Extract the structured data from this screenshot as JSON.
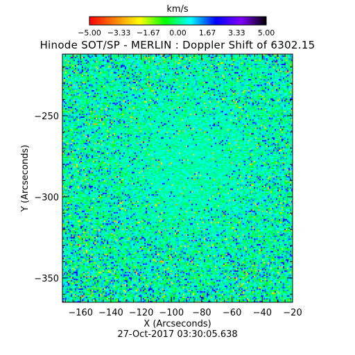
{
  "colorbar": {
    "unit": "km/s",
    "tick_labels": [
      "-5.00",
      "-3.33",
      "-1.67",
      "0.00",
      "1.67",
      "3.33",
      "5.00"
    ],
    "range": [
      -5,
      5
    ],
    "colormap": [
      "#ff0000",
      "#ff8000",
      "#ffff00",
      "#00ff00",
      "#00ffff",
      "#0000ff",
      "#8000ff",
      "#000000"
    ]
  },
  "chart_data": {
    "type": "heatmap",
    "title": "Hinode SOT/SP - MERLIN : Doppler Shift of 6302.15",
    "xlabel": "X (Arcseconds)",
    "ylabel": "Y (Arcseconds)",
    "xlim": [
      -172,
      -20
    ],
    "ylim": [
      -365,
      -212
    ],
    "x_ticks": [
      -160,
      -140,
      -120,
      -100,
      -80,
      -60,
      -40,
      -20
    ],
    "x_tick_labels": [
      "-160",
      "-140",
      "-120",
      "-100",
      "-80",
      "-60",
      "-40",
      "-20"
    ],
    "y_ticks": [
      -250,
      -300,
      -350
    ],
    "y_tick_labels": [
      "-250",
      "-300",
      "-350"
    ],
    "value_range": [
      -5,
      5
    ],
    "dominant_value": 0.3,
    "timestamp": "27-Oct-2017 03:30:05.638"
  }
}
